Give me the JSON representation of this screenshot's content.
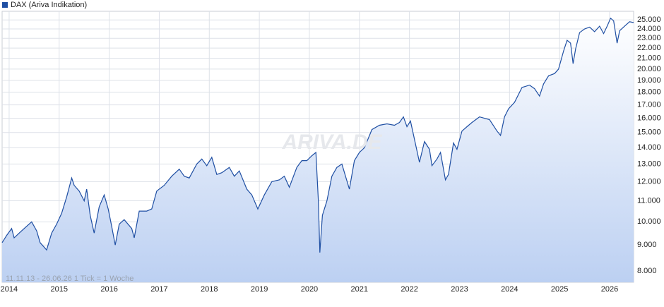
{
  "chart_data": {
    "type": "line",
    "series": [
      {
        "name": "DAX (Ariva Indikation)",
        "color": "#1f4fa3",
        "x": [
          2013.86,
          2013.95,
          2014.05,
          2014.1,
          2014.2,
          2014.3,
          2014.45,
          2014.55,
          2014.62,
          2014.75,
          2014.85,
          2014.95,
          2015.05,
          2015.15,
          2015.25,
          2015.3,
          2015.4,
          2015.5,
          2015.55,
          2015.62,
          2015.7,
          2015.8,
          2015.9,
          2015.98,
          2016.05,
          2016.12,
          2016.2,
          2016.3,
          2016.45,
          2016.5,
          2016.6,
          2016.75,
          2016.85,
          2016.95,
          2017.1,
          2017.25,
          2017.4,
          2017.5,
          2017.6,
          2017.75,
          2017.85,
          2017.95,
          2018.05,
          2018.15,
          2018.25,
          2018.4,
          2018.5,
          2018.6,
          2018.75,
          2018.85,
          2018.97,
          2019.1,
          2019.25,
          2019.4,
          2019.5,
          2019.6,
          2019.75,
          2019.85,
          2019.95,
          2020.05,
          2020.13,
          2020.18,
          2020.21,
          2020.26,
          2020.35,
          2020.45,
          2020.55,
          2020.65,
          2020.8,
          2020.9,
          2021.0,
          2021.1,
          2021.25,
          2021.4,
          2021.55,
          2021.7,
          2021.8,
          2021.88,
          2021.95,
          2022.02,
          2022.15,
          2022.2,
          2022.3,
          2022.4,
          2022.45,
          2022.55,
          2022.62,
          2022.72,
          2022.78,
          2022.88,
          2022.95,
          2023.05,
          2023.15,
          2023.25,
          2023.4,
          2023.5,
          2023.6,
          2023.75,
          2023.82,
          2023.9,
          2023.98,
          2024.1,
          2024.25,
          2024.4,
          2024.5,
          2024.6,
          2024.68,
          2024.78,
          2024.9,
          2024.98,
          2025.08,
          2025.15,
          2025.22,
          2025.27,
          2025.32,
          2025.4,
          2025.5,
          2025.6,
          2025.7,
          2025.8,
          2025.88,
          2025.95,
          2026.02,
          2026.08,
          2026.15,
          2026.2,
          2026.3,
          2026.4,
          2026.48
        ],
        "values": [
          9100,
          9400,
          9700,
          9300,
          9500,
          9700,
          10000,
          9600,
          9100,
          8800,
          9500,
          9900,
          10400,
          11200,
          12200,
          11800,
          11500,
          11000,
          11600,
          10300,
          9500,
          10700,
          11300,
          10600,
          9800,
          9000,
          9900,
          10100,
          9700,
          9300,
          10500,
          10500,
          10600,
          11500,
          11800,
          12300,
          12700,
          12300,
          12200,
          13000,
          13300,
          12900,
          13400,
          12400,
          12500,
          12800,
          12300,
          12600,
          11600,
          11300,
          10600,
          11300,
          12000,
          12100,
          12300,
          11700,
          12800,
          13200,
          13200,
          13500,
          13700,
          11000,
          8700,
          10300,
          11000,
          12300,
          12800,
          13000,
          11600,
          13200,
          13700,
          14000,
          15200,
          15500,
          15600,
          15500,
          15700,
          16100,
          15400,
          15800,
          13800,
          13100,
          14400,
          13900,
          12900,
          13300,
          13700,
          12100,
          12400,
          14300,
          13900,
          15100,
          15400,
          15700,
          16100,
          16000,
          15900,
          15100,
          14800,
          16100,
          16700,
          17200,
          18400,
          18600,
          18300,
          17700,
          18700,
          19400,
          19600,
          20000,
          21700,
          22800,
          22500,
          20500,
          21900,
          23600,
          24000,
          24200,
          23700,
          24300,
          23500,
          24300,
          25200,
          24900,
          22500,
          23800,
          24300,
          24800,
          24700
        ]
      }
    ],
    "xlim": [
      2013.86,
      2026.48
    ],
    "xticks": [
      2014,
      2015,
      2016,
      2017,
      2018,
      2019,
      2020,
      2021,
      2022,
      2023,
      2024,
      2025,
      2026
    ],
    "ylim": [
      7600,
      26000
    ],
    "log_scale": true,
    "yticks": [
      {
        "value": 8000,
        "label": "8.000"
      },
      {
        "value": 9000,
        "label": "9.000"
      },
      {
        "value": 10000,
        "label": "10.000"
      },
      {
        "value": 11000,
        "label": "11.000"
      },
      {
        "value": 12000,
        "label": "12.000"
      },
      {
        "value": 13000,
        "label": "13.000"
      },
      {
        "value": 14000,
        "label": "14.000"
      },
      {
        "value": 15000,
        "label": "15.000"
      },
      {
        "value": 16000,
        "label": "16.000"
      },
      {
        "value": 17000,
        "label": "17.000"
      },
      {
        "value": 18000,
        "label": "18.000"
      },
      {
        "value": 19000,
        "label": "19.000"
      },
      {
        "value": 20000,
        "label": "20.000"
      },
      {
        "value": 21000,
        "label": "21.000"
      },
      {
        "value": 22000,
        "label": "22.000"
      },
      {
        "value": 23000,
        "label": "23.000"
      },
      {
        "value": 24000,
        "label": "24.000"
      },
      {
        "value": 25000,
        "label": "25.000"
      }
    ],
    "grid": true,
    "watermark": "ARIVA.DE",
    "note": "11.11.13 - 26.06.26   1 Tick = 1 Woche"
  }
}
